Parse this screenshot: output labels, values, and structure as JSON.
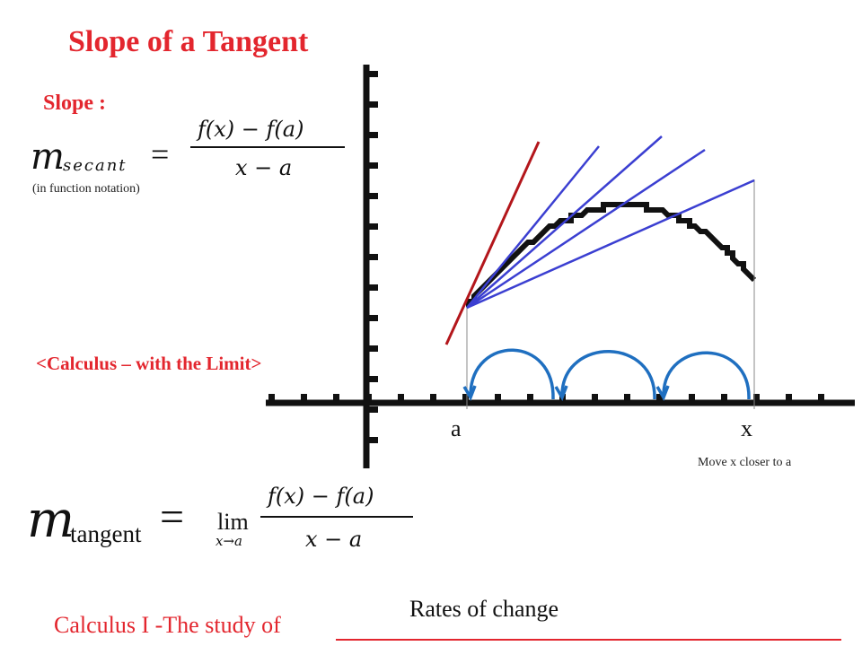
{
  "title": "Slope of a Tangent",
  "slope_label": "Slope :",
  "secant_formula": {
    "lhs_main": "m",
    "lhs_sub": "secant",
    "equals": "=",
    "numerator": "f(x) − f(a)",
    "denominator": "x − a"
  },
  "function_notation_note": "(in function notation)",
  "limit_heading": "<Calculus – with the Limit>",
  "graph": {
    "label_a": "a",
    "label_x": "x",
    "move_note": "Move x closer to a",
    "colors": {
      "axes": "#111111",
      "curve": "#111111",
      "secant_lines": "#3b3fd1",
      "tangent_line": "#b3161b",
      "arrows": "#1f6fc0"
    }
  },
  "tangent_formula": {
    "lhs_main": "m",
    "lhs_sub": "tangent",
    "equals": "=",
    "lim": "lim",
    "lim_sub": "x→a",
    "numerator": "f(x) − f(a)",
    "denominator": "x − a"
  },
  "footer": {
    "prefix": "Calculus I -The study of",
    "answer": "Rates of change"
  },
  "colors": {
    "accent": "#e3262e"
  }
}
